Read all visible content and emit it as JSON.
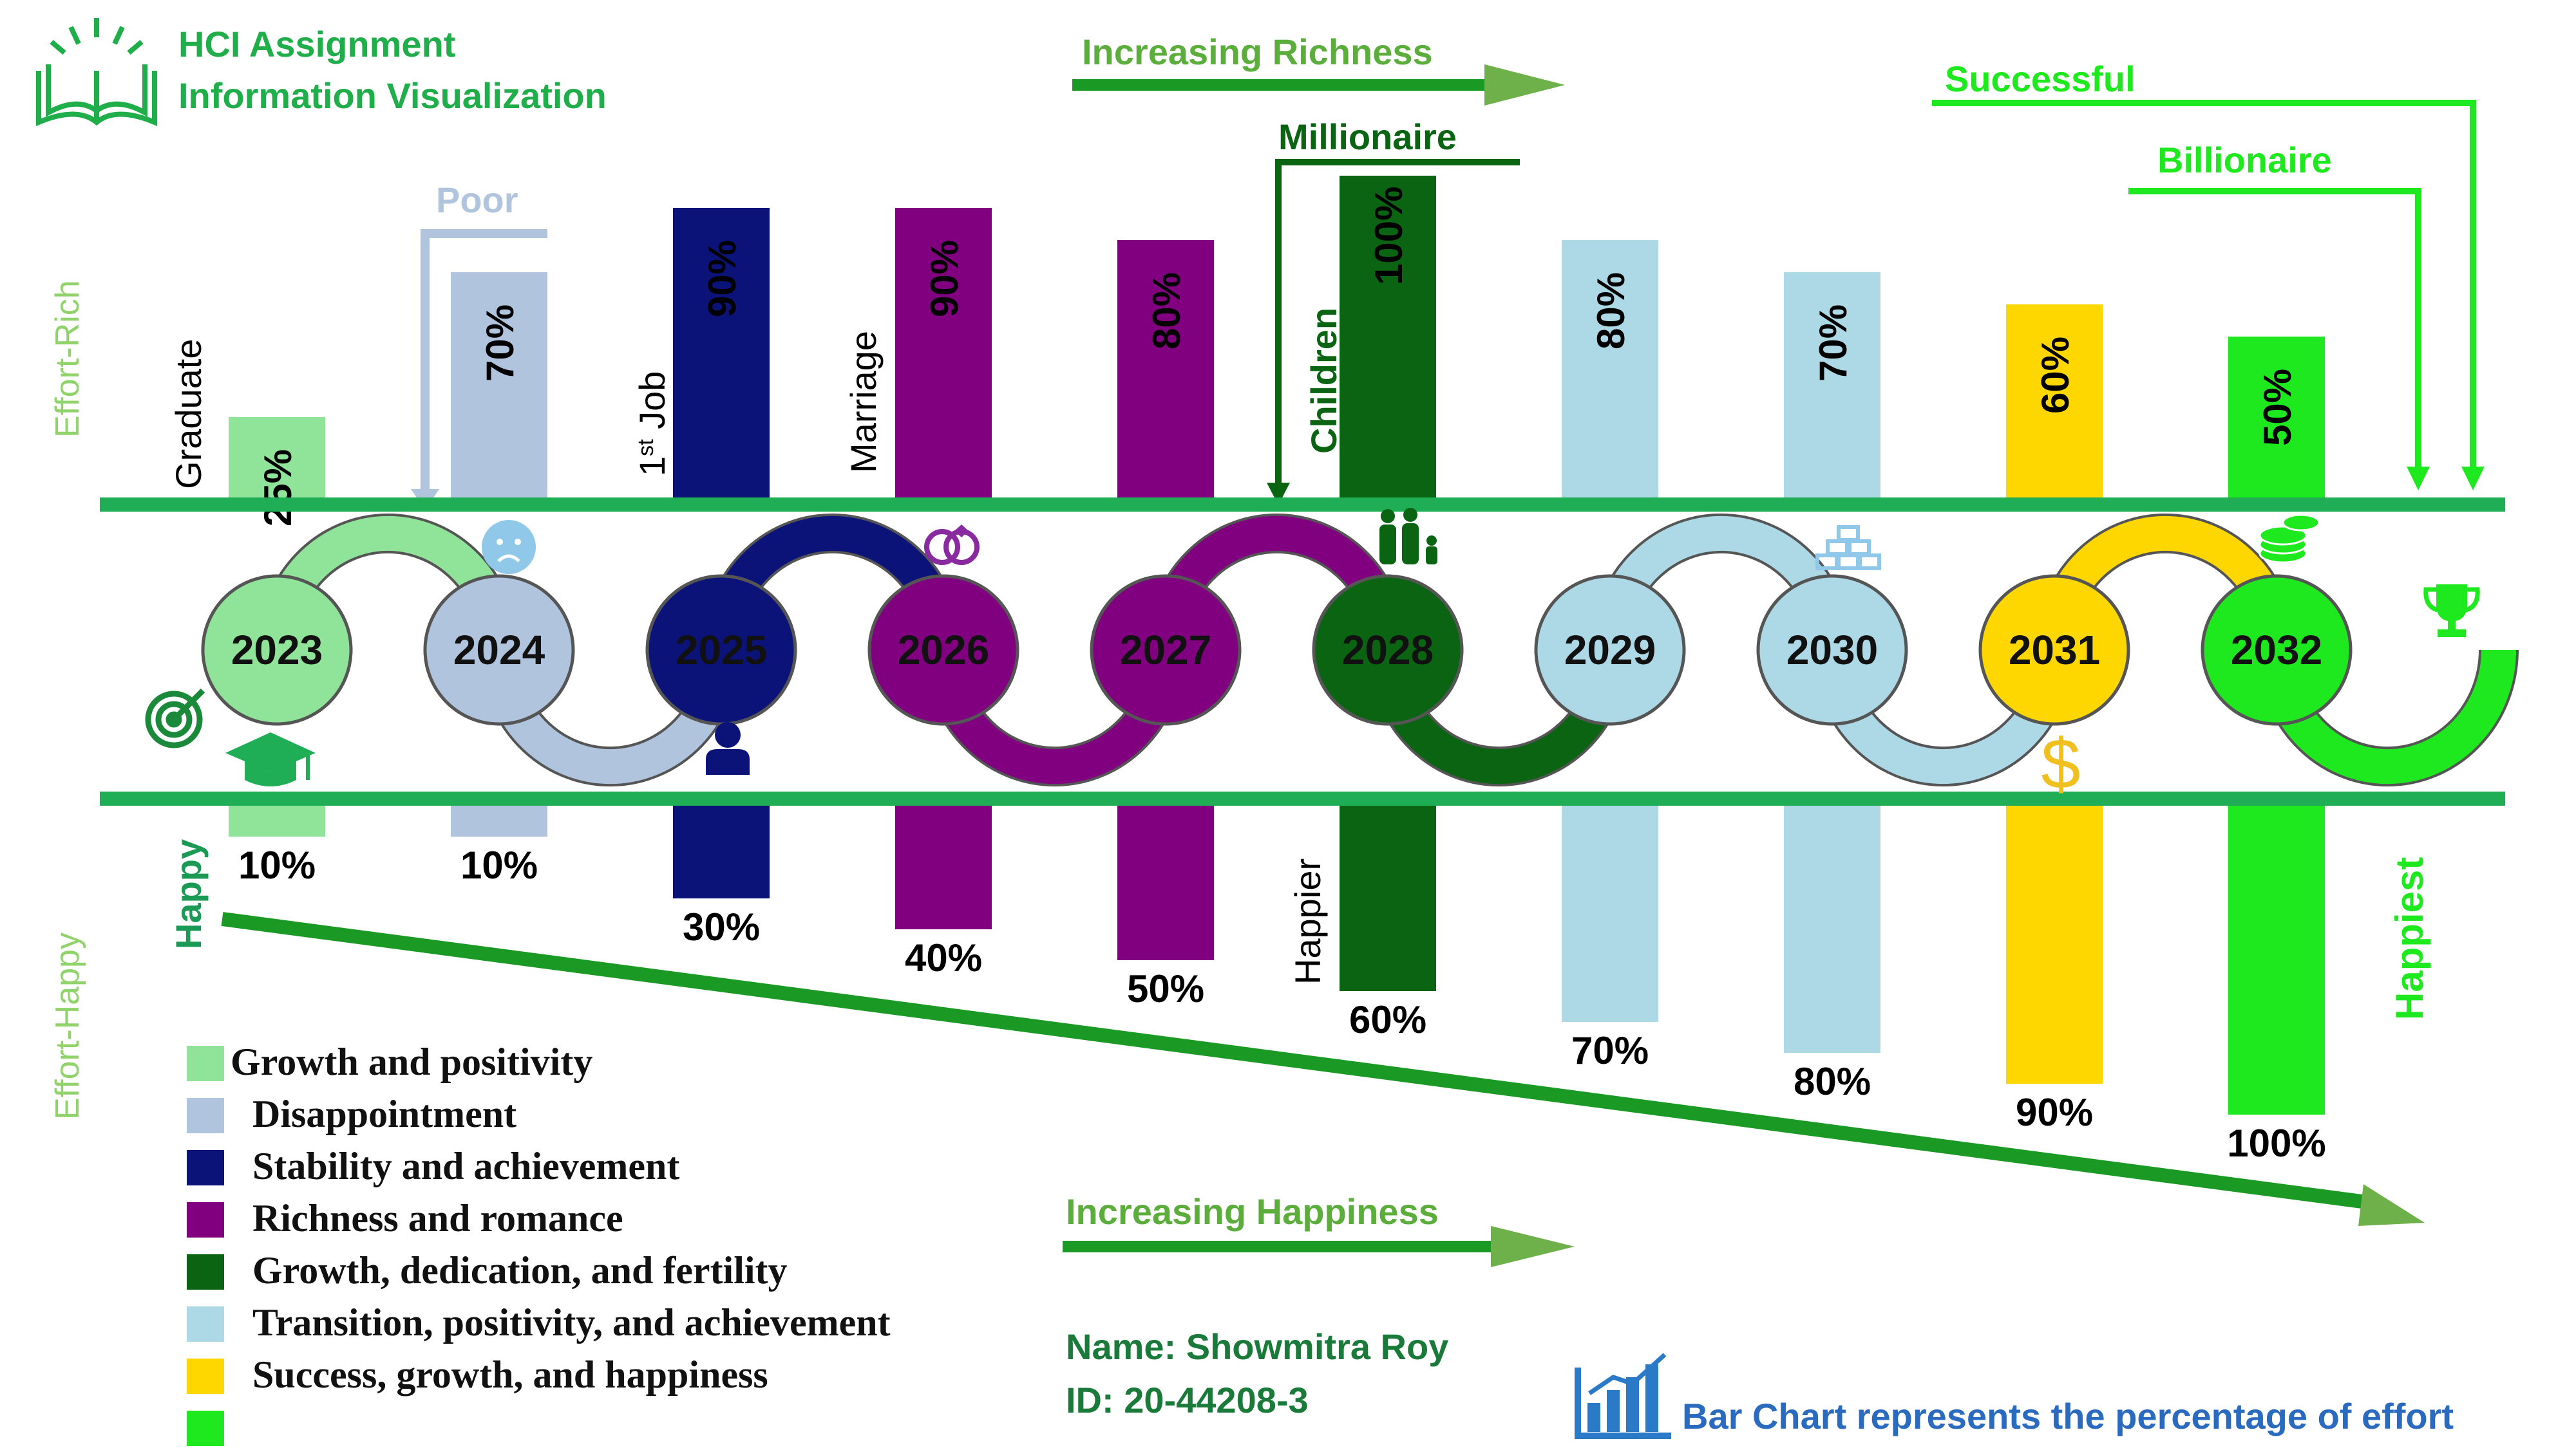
{
  "header": {
    "title_line1": "HCI Assignment",
    "title_line2": "Information Visualization"
  },
  "axes": {
    "top_label": "Effort-Rich",
    "bottom_label": "Effort-Happy"
  },
  "arrows": {
    "increasing_richness": "Increasing Richness",
    "increasing_happiness": "Increasing Happiness"
  },
  "annotations": {
    "poor": "Poor",
    "millionaire": "Millionaire",
    "successful": "Successful",
    "billionaire": "Billionaire",
    "graduate": "Graduate",
    "first_job": "1st Job",
    "marriage": "Marriage",
    "children": "Children",
    "happy": "Happy",
    "happier": "Happier",
    "happiest": "Happiest"
  },
  "legend": [
    {
      "label": "Growth and positivity",
      "color": "#90e49a"
    },
    {
      "label": "Disappointment",
      "color": "#b0c4de"
    },
    {
      "label": "Stability and achievement",
      "color": "#0b1378"
    },
    {
      "label": "Richness and romance",
      "color": "#800080"
    },
    {
      "label": "Growth, dedication, and fertility",
      "color": "#0a6412"
    },
    {
      "label": "Transition, positivity, and achievement",
      "color": "#add8e6"
    },
    {
      "label": "Success, growth, and happiness",
      "color": "#ffd700"
    },
    {
      "label": "",
      "color": "#1ee81e"
    }
  ],
  "footer": {
    "name": "Name: Showmitra Roy",
    "id": "ID: 20-44208-3",
    "note": "Bar Chart represents the percentage of effort"
  },
  "chart_data": {
    "type": "bar",
    "categories": [
      "2023",
      "2024",
      "2025",
      "2026",
      "2027",
      "2028",
      "2029",
      "2030",
      "2031",
      "2032"
    ],
    "series": [
      {
        "values": [
          25,
          70,
          90,
          90,
          80,
          100,
          80,
          70,
          60,
          50
        ]
      },
      {
        "values": [
          10,
          10,
          30,
          40,
          50,
          60,
          70,
          80,
          90,
          100
        ]
      }
    ],
    "labels_top": [
      "25%",
      "70%",
      "90%",
      "90%",
      "80%",
      "100%",
      "80%",
      "70%",
      "60%",
      "50%"
    ],
    "labels_bottom": [
      "10%",
      "10%",
      "30%",
      "40%",
      "50%",
      "60%",
      "70%",
      "80%",
      "90%",
      "100%"
    ],
    "colors": [
      "#90e49a",
      "#b0c4de",
      "#0b1378",
      "#800080",
      "#800080",
      "#0a6412",
      "#add8e6",
      "#add8e6",
      "#ffd700",
      "#1ee81e"
    ],
    "ylim": [
      0,
      100
    ]
  }
}
